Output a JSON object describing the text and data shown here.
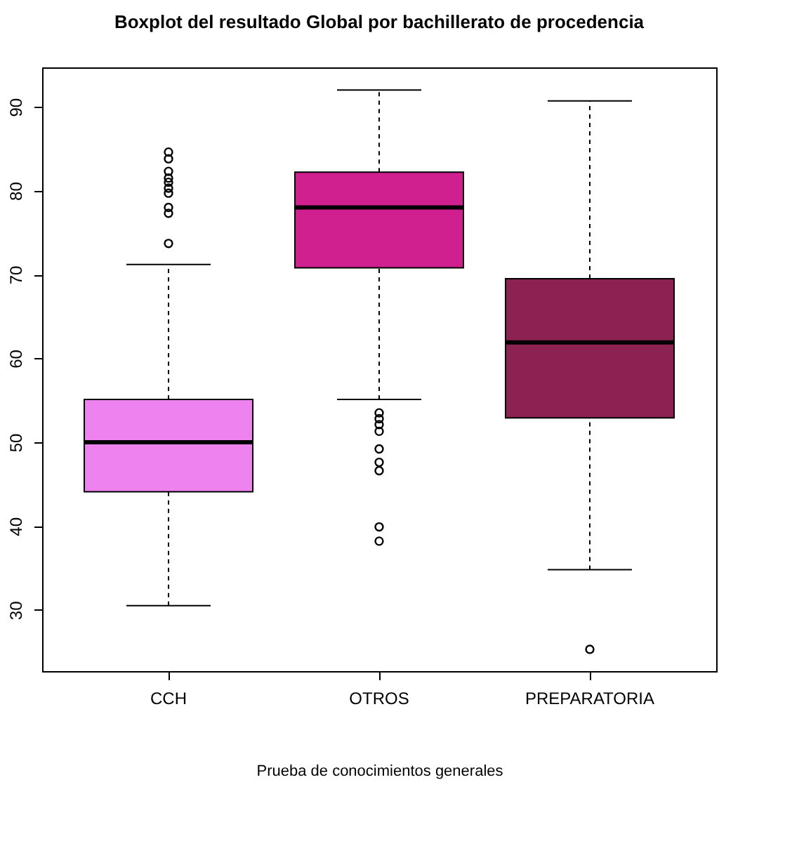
{
  "chart_data": {
    "type": "box",
    "title": "Boxplot del resultado Global por bachillerato de procedencia",
    "xlabel": "Prueba de conocimientos generales",
    "categories": [
      "CCH",
      "OTROS",
      "PREPARATORIA"
    ],
    "colors": [
      "#ee82ee",
      "#d02090",
      "#8b2252"
    ],
    "boxes": [
      {
        "low": 30.5,
        "q1": 44.1,
        "median": 50.0,
        "q3": 55.1,
        "high": 71.2,
        "outliers": [
          73.7,
          77.3,
          78.0,
          79.7,
          80.3,
          81.0,
          81.5,
          82.3,
          83.8,
          84.6
        ]
      },
      {
        "low": 55.1,
        "q1": 70.8,
        "median": 78.0,
        "q3": 82.2,
        "high": 92.0,
        "outliers": [
          53.5,
          52.8,
          52.1,
          51.3,
          49.2,
          47.6,
          46.6,
          39.9,
          38.2
        ]
      },
      {
        "low": 34.8,
        "q1": 52.9,
        "median": 61.9,
        "q3": 69.5,
        "high": 90.7,
        "outliers": [
          25.3
        ]
      }
    ],
    "ylim": [
      22.7,
      94.7
    ],
    "yticks": [
      30,
      40,
      50,
      60,
      70,
      80,
      90
    ],
    "grid": false,
    "legend": false
  }
}
